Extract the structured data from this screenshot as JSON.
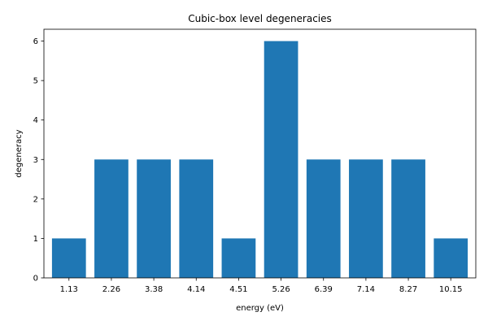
{
  "chart_data": {
    "type": "bar",
    "title": "Cubic-box level degeneracies",
    "xlabel": "energy (eV)",
    "ylabel": "degeneracy",
    "categories": [
      "1.13",
      "2.26",
      "3.38",
      "4.14",
      "4.51",
      "5.26",
      "6.39",
      "7.14",
      "8.27",
      "10.15"
    ],
    "values": [
      1,
      3,
      3,
      3,
      1,
      6,
      3,
      3,
      3,
      1
    ],
    "ylim": [
      0,
      6.3
    ],
    "yticks": [
      0,
      1,
      2,
      3,
      4,
      5,
      6
    ],
    "bar_color": "#1f77b4",
    "grid": false,
    "legend": "none"
  }
}
